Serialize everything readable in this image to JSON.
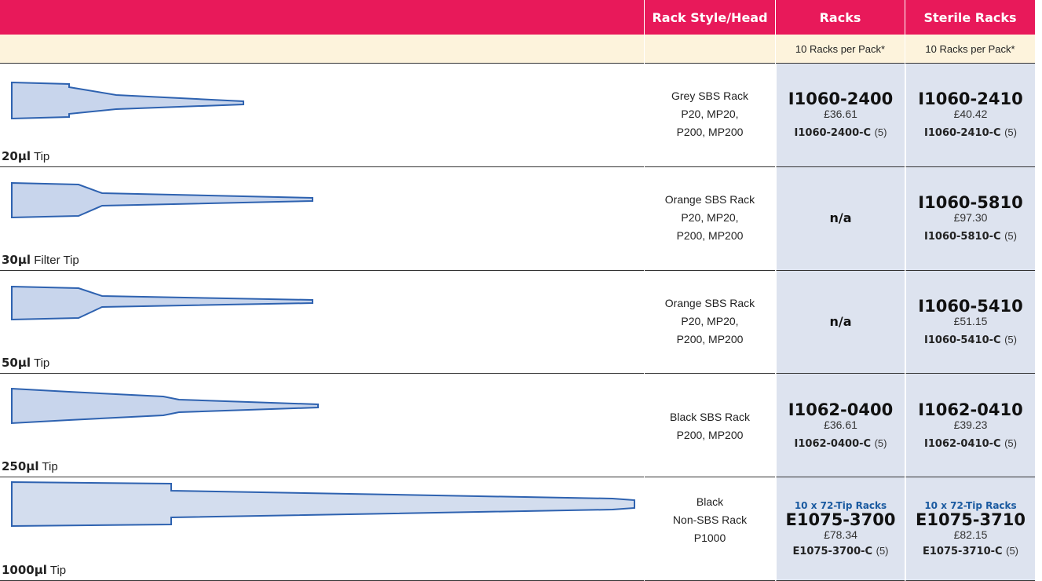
{
  "header": {
    "columns": [
      "Rack Style/Head",
      "Racks",
      "Sterile Racks"
    ]
  },
  "subheader": [
    "10 Racks per Pack*",
    "10 Racks per Pack*"
  ],
  "rows": [
    {
      "size": "20µl",
      "tip": "Tip",
      "rack": [
        "Grey SBS Rack",
        "P20, MP20,",
        "P200, MP200"
      ],
      "racks": {
        "code": "I1060-2400",
        "price": "£36.61",
        "case_code": "I1060-2400-C",
        "case_qty": "(5)"
      },
      "sterile": {
        "code": "I1060-2410",
        "price": "£40.42",
        "case_code": "I1060-2410-C",
        "case_qty": "(5)"
      }
    },
    {
      "size": "30µl",
      "tip": "Filter Tip",
      "rack": [
        "Orange SBS Rack",
        "P20, MP20,",
        "P200, MP200"
      ],
      "racks": "n/a",
      "sterile": {
        "code": "I1060-5810",
        "price": "£97.30",
        "case_code": "I1060-5810-C",
        "case_qty": "(5)"
      }
    },
    {
      "size": "50µl",
      "tip": "Tip",
      "rack": [
        "Orange SBS Rack",
        "P20, MP20,",
        "P200, MP200"
      ],
      "racks": "n/a",
      "sterile": {
        "code": "I1060-5410",
        "price": "£51.15",
        "case_code": "I1060-5410-C",
        "case_qty": "(5)"
      }
    },
    {
      "size": "250µl",
      "tip": "Tip",
      "rack": [
        "Black SBS Rack",
        "P200, MP200"
      ],
      "racks": {
        "code": "I1062-0400",
        "price": "£36.61",
        "case_code": "I1062-0400-C",
        "case_qty": "(5)"
      },
      "sterile": {
        "code": "I1062-0410",
        "price": "£39.23",
        "case_code": "I1062-0410-C",
        "case_qty": "(5)"
      }
    },
    {
      "size": "1000µl",
      "tip": "Tip",
      "rack": [
        "Black",
        "Non-SBS Rack",
        "P1000"
      ],
      "racks": {
        "note": "10 x 72-Tip Racks",
        "code": "E1075-3700",
        "price": "£78.34",
        "case_code": "E1075-3700-C",
        "case_qty": "(5)"
      },
      "sterile": {
        "note": "10 x 72-Tip Racks",
        "code": "E1075-3710",
        "price": "£82.15",
        "case_code": "E1075-3710-C",
        "case_qty": "(5)"
      }
    }
  ]
}
